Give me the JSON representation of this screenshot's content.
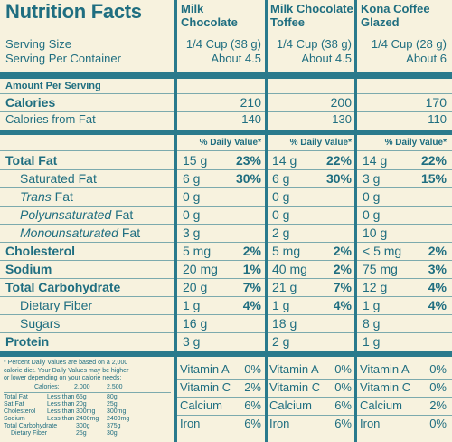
{
  "title": "Nutrition Facts",
  "columns": [
    {
      "name": "Milk Chocolate",
      "serving_size": "1/4 Cup (38 g)",
      "servings": "About 4.5",
      "calories": "210",
      "calories_fat": "140",
      "total_fat": "15 g",
      "total_fat_dv": "23%",
      "sat_fat": "6 g",
      "sat_fat_dv": "30%",
      "trans_fat": "0 g",
      "poly_fat": "0 g",
      "mono_fat": "3 g",
      "cholesterol": "5 mg",
      "cholesterol_dv": "2%",
      "sodium": "20 mg",
      "sodium_dv": "1%",
      "carb": "20 g",
      "carb_dv": "7%",
      "fiber": "1 g",
      "fiber_dv": "4%",
      "sugars": "16 g",
      "protein": "3 g",
      "vit_a": "0%",
      "vit_c": "2%",
      "calcium": "6%",
      "iron": "6%"
    },
    {
      "name": "Milk Chocolate Toffee",
      "serving_size": "1/4 Cup (38 g)",
      "servings": "About 4.5",
      "calories": "200",
      "calories_fat": "130",
      "total_fat": "14 g",
      "total_fat_dv": "22%",
      "sat_fat": "6 g",
      "sat_fat_dv": "30%",
      "trans_fat": "0 g",
      "poly_fat": "0 g",
      "mono_fat": "2 g",
      "cholesterol": "5 mg",
      "cholesterol_dv": "2%",
      "sodium": "40 mg",
      "sodium_dv": "2%",
      "carb": "21 g",
      "carb_dv": "7%",
      "fiber": "1 g",
      "fiber_dv": "4%",
      "sugars": "18 g",
      "protein": "2 g",
      "vit_a": "0%",
      "vit_c": "0%",
      "calcium": "6%",
      "iron": "6%"
    },
    {
      "name": "Kona Coffee Glazed",
      "serving_size": "1/4 Cup (28 g)",
      "servings": "About 6",
      "calories": "170",
      "calories_fat": "110",
      "total_fat": "14 g",
      "total_fat_dv": "22%",
      "sat_fat": "3 g",
      "sat_fat_dv": "15%",
      "trans_fat": "0 g",
      "poly_fat": "0 g",
      "mono_fat": "10 g",
      "cholesterol": "< 5 mg",
      "cholesterol_dv": "2%",
      "sodium": "75 mg",
      "sodium_dv": "3%",
      "carb": "12 g",
      "carb_dv": "4%",
      "fiber": "1 g",
      "fiber_dv": "4%",
      "sugars": "8 g",
      "protein": "1 g",
      "vit_a": "0%",
      "vit_c": "0%",
      "calcium": "2%",
      "iron": "0%"
    }
  ],
  "labels": {
    "serving_size": "Serving Size",
    "servings": "Serving Per Container",
    "amount": "Amount Per Serving",
    "calories": "Calories",
    "calories_fat": "Calories from Fat",
    "dv_header": "% Daily Value*",
    "total_fat": "Total Fat",
    "sat_fat": "Saturated Fat",
    "trans_fat_i": "Trans",
    "trans_fat": " Fat",
    "poly_fat_i": "Polyunsaturated",
    "poly_fat": " Fat",
    "mono_fat_i": "Monounsaturated",
    "mono_fat": " Fat",
    "cholesterol": "Cholesterol",
    "sodium": "Sodium",
    "carb": "Total Carbohydrate",
    "fiber": "Dietary Fiber",
    "sugars": "Sugars",
    "protein": "Protein",
    "vit_a": "Vitamin A",
    "vit_c": "Vitamin C",
    "calcium": "Calcium",
    "iron": "Iron"
  },
  "footnote": {
    "line1": "* Percent Daily Values are based on a 2,000",
    "line2": "calorie diet. Your Daily Values may be higher",
    "line3": "or lower depending on your calorie needs:",
    "cal_label": "Calories:",
    "cal_2000": "2,000",
    "cal_2500": "2,500",
    "rows": [
      {
        "name": "Total Fat",
        "qual": "Less than",
        "a": "65g",
        "b": "80g"
      },
      {
        "name": "Sat Fat",
        "qual": "Less than",
        "a": "20g",
        "b": "25g"
      },
      {
        "name": "Cholesterol",
        "qual": "Less than",
        "a": "300mg",
        "b": "300mg"
      },
      {
        "name": "Sodium",
        "qual": "Less than",
        "a": "2400mg",
        "b": "2400mg"
      },
      {
        "name": "Total Carbohydrate",
        "qual": "",
        "a": "300g",
        "b": "375g"
      },
      {
        "name": "Dietary Fiber",
        "qual": "",
        "a": "25g",
        "b": "30g"
      }
    ]
  },
  "colors": {
    "ink": "#1f6e80",
    "background": "#f7f2de"
  }
}
